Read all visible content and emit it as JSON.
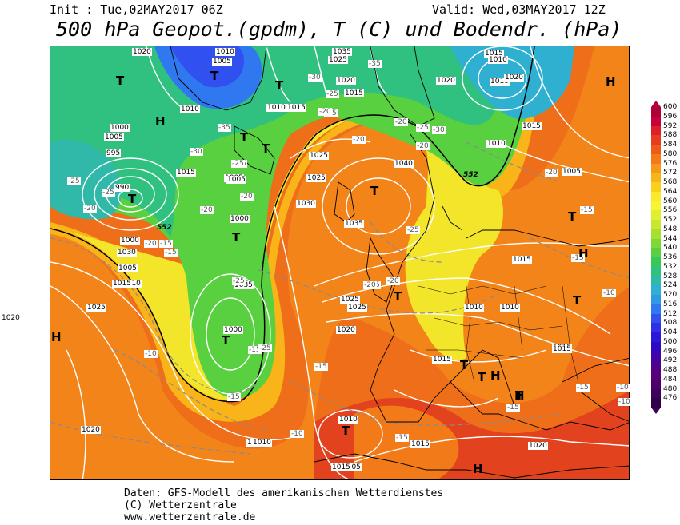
{
  "header": {
    "init_text": "Init : Tue,02MAY2017 06Z",
    "valid_text": "Valid: Wed,03MAY2017 12Z",
    "title": "500 hPa Geopot.(gpdm), T (C) und Bodendr. (hPa)"
  },
  "footer": {
    "line1": "Daten: GFS-Modell des amerikanischen Wetterdienstes",
    "line2": "(C) Wetterzentrale",
    "line3": "www.wetterzentrale.de"
  },
  "colorbar": {
    "labels": [
      "600",
      "596",
      "592",
      "588",
      "584",
      "580",
      "576",
      "572",
      "568",
      "564",
      "560",
      "556",
      "552",
      "548",
      "544",
      "540",
      "536",
      "532",
      "528",
      "524",
      "520",
      "516",
      "512",
      "508",
      "504",
      "500",
      "496",
      "492",
      "488",
      "484",
      "480",
      "476"
    ],
    "colors": [
      "#b0003a",
      "#c8003c",
      "#e01e28",
      "#e83c1e",
      "#ee5a1a",
      "#f27a18",
      "#f59a18",
      "#f8b418",
      "#fbd018",
      "#fde830",
      "#f5f530",
      "#e0f030",
      "#c8e830",
      "#a8e030",
      "#80d838",
      "#58d040",
      "#38c858",
      "#30c080",
      "#30b8a8",
      "#30b0d0",
      "#3098e8",
      "#3078f0",
      "#3050f0",
      "#3030e8",
      "#2818d8",
      "#3008c0",
      "#4004a8",
      "#500090",
      "#580078",
      "#4a0068",
      "#40005a",
      "#300048"
    ]
  },
  "pressure_labels": [
    "1020",
    "1010",
    "1005",
    "1010",
    "1025",
    "1035",
    "1015",
    "1010",
    "1010",
    "1000",
    "995",
    "990",
    "1005",
    "1020",
    "1015",
    "1010",
    "1015",
    "1005",
    "1020",
    "1025",
    "1020",
    "1015",
    "1005",
    "1010",
    "1025",
    "1030",
    "1035",
    "1040",
    "1000",
    "1015",
    "1010",
    "1025",
    "1035",
    "1030",
    "1025",
    "1020",
    "1020",
    "1010",
    "1005",
    "1000",
    "1015",
    "1005",
    "1010",
    "1005",
    "1020",
    "1000",
    "1025",
    "1015",
    "1010",
    "1015",
    "1010",
    "1020",
    "1020",
    "1015",
    "1015",
    "1010",
    "1015"
  ],
  "temperature_labels": [
    "-35",
    "-30",
    "-25",
    "-35",
    "-25",
    "-30",
    "-20",
    "-25",
    "-20",
    "-25",
    "-20",
    "-20",
    "-30",
    "-25",
    "-20",
    "-20",
    "-25",
    "-20",
    "-15",
    "-15",
    "-25",
    "-25",
    "-20",
    "-25",
    "-25",
    "-20",
    "-10",
    "-15",
    "-15",
    "-15",
    "-10",
    "-15",
    "-10",
    "-15",
    "-15",
    "-15",
    "-15",
    "-10",
    "-25",
    "-20",
    "-20",
    "-10"
  ],
  "pressure_centers": [
    "T",
    "T",
    "T",
    "H",
    "H",
    "T",
    "T",
    "T",
    "T",
    "T",
    "T",
    "H",
    "H",
    "T",
    "T",
    "T",
    "H",
    "T",
    "H",
    "T",
    "H",
    "T",
    "T",
    "T"
  ],
  "contour_552_label": "552",
  "contour_552_label_b": "552"
}
